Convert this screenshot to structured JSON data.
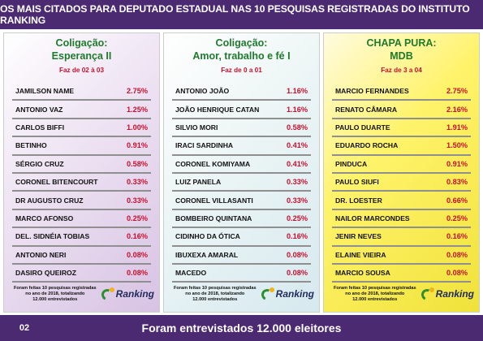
{
  "header": {
    "title": "OS MAIS CITADOS PARA DEPUTADO ESTADUAL NAS 10 PESQUISAS REGISTRADAS DO INSTITUTO RANKING"
  },
  "panels": [
    {
      "title1": "Coligação:",
      "title2": "Esperança II",
      "faz": "Faz de 02 à 03",
      "rows": [
        {
          "name": "JAMILSON NAME",
          "pct": "2.75%"
        },
        {
          "name": "ANTONIO VAZ",
          "pct": "1.25%"
        },
        {
          "name": "CARLOS BIFFI",
          "pct": "1.00%"
        },
        {
          "name": "BETINHO",
          "pct": "0.91%"
        },
        {
          "name": "SÉRGIO CRUZ",
          "pct": "0.58%"
        },
        {
          "name": "CORONEL BITENCOURT",
          "pct": "0.33%"
        },
        {
          "name": "DR AUGUSTO CRUZ",
          "pct": "0.33%"
        },
        {
          "name": "MARCO AFONSO",
          "pct": "0.25%"
        },
        {
          "name": "DEL. SIDNÉIA TOBIAS",
          "pct": "0.16%"
        },
        {
          "name": "ANTONIO NERI",
          "pct": "0.08%"
        },
        {
          "name": "DASIRO QUEIROZ",
          "pct": "0.08%"
        }
      ],
      "note1": "Foram feitas 10 pesquisas registradas",
      "note2": "no ano de 2018, totalizando",
      "note3": "12.000 entrevistados"
    },
    {
      "title1": "Coligação:",
      "title2": "Amor, trabalho e fé I",
      "faz": "Faz de 0 a 01",
      "rows": [
        {
          "name": "ANTONIO JOÃO",
          "pct": "1.16%"
        },
        {
          "name": "JOÃO HENRIQUE CATAN",
          "pct": "1.16%"
        },
        {
          "name": "SILVIO MORI",
          "pct": "0.58%"
        },
        {
          "name": "IRACI SARDINHA",
          "pct": "0.41%"
        },
        {
          "name": "CORONEL KOMIYAMA",
          "pct": "0.41%"
        },
        {
          "name": "LUIZ PANELA",
          "pct": "0.33%"
        },
        {
          "name": "CORONEL VILLASANTI",
          "pct": "0.33%"
        },
        {
          "name": "BOMBEIRO QUINTANA",
          "pct": "0.25%"
        },
        {
          "name": "CIDINHO DA ÓTICA",
          "pct": "0.16%"
        },
        {
          "name": "IBUXEXA AMARAL",
          "pct": "0.08%"
        },
        {
          "name": "MACEDO",
          "pct": "0.08%"
        }
      ],
      "note1": "Foram feitas 10 pesquisas registradas",
      "note2": "no ano de 2018, totalizando",
      "note3": "12.000 entrevistados"
    },
    {
      "title1": "CHAPA PURA:",
      "title2": "MDB",
      "faz": "Faz de 3 a 04",
      "rows": [
        {
          "name": "MARCIO FERNANDES",
          "pct": "2.75%"
        },
        {
          "name": "RENATO CÂMARA",
          "pct": "2.16%"
        },
        {
          "name": "PAULO DUARTE",
          "pct": "1.91%"
        },
        {
          "name": "EDUARDO ROCHA",
          "pct": "1.50%"
        },
        {
          "name": "PINDUCA",
          "pct": "0.91%"
        },
        {
          "name": "PAULO SIUFI",
          "pct": "0.83%"
        },
        {
          "name": "DR. LOESTER",
          "pct": "0.66%"
        },
        {
          "name": "NAILOR MARCONDES",
          "pct": "0.25%"
        },
        {
          "name": "JENIR NEVES",
          "pct": "0.16%"
        },
        {
          "name": "ELAINE VIEIRA",
          "pct": "0.08%"
        },
        {
          "name": "MARCIO SOUSA",
          "pct": "0.08%"
        }
      ],
      "note1": "Foram feitas 10 pesquisas registradas",
      "note2": "no ano de 2018, totalizando",
      "note3": "12.000 entrevistados"
    }
  ],
  "logo": {
    "text": "Ranking",
    "icon": "ranking-logo-icon"
  },
  "footer": {
    "page": "02",
    "text": "Foram entrevistados 12.000 eleitores"
  },
  "colors": {
    "purple": "#4b2a72",
    "red": "#c8102e",
    "green": "#1f7a2c",
    "yellow": "#fff36b"
  }
}
